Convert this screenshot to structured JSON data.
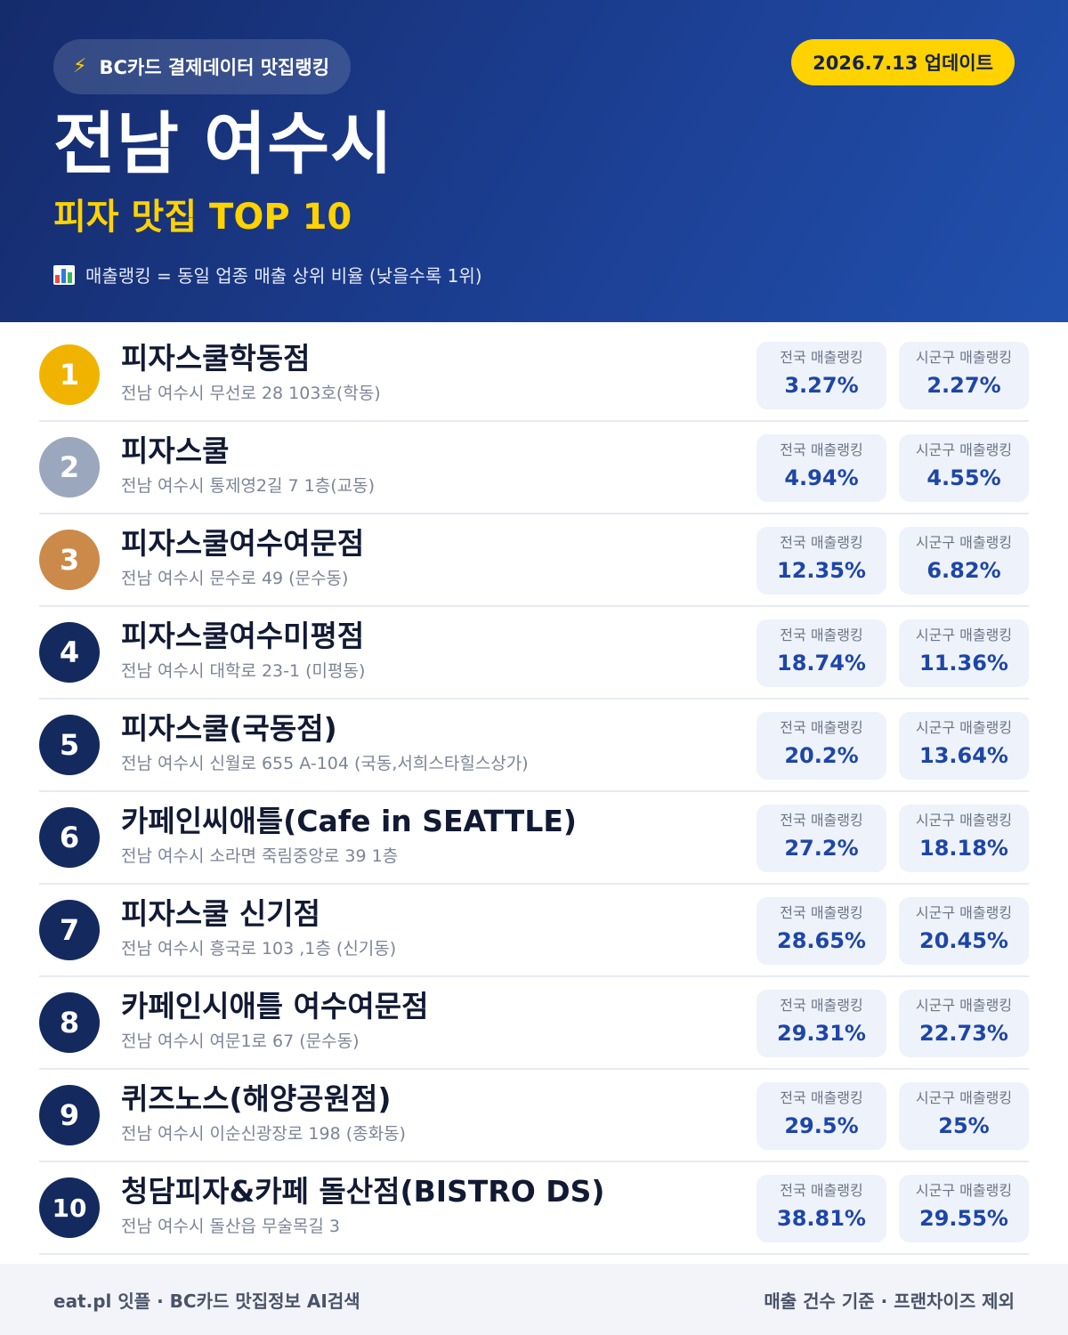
{
  "header": {
    "brand_label": "BC카드 결제데이터 맛집랭킹",
    "bolt_icon": "lightning-bolt-icon",
    "update_label": "2026.7.13 업데이트",
    "title": "전남 여수시",
    "subtitle": "피자 맛집 TOP 10",
    "chart_icon": "bar-chart-icon",
    "note": "매출랭킹 = 동일 업종 매출 상위 비율 (낮을수록 1위)"
  },
  "stat_labels": {
    "national": "전국 매출랭킹",
    "local": "시군구 매출랭킹"
  },
  "rank_colors": {
    "1": "#f0b400",
    "2": "#9ba7bd",
    "3": "#cc8a4a",
    "default": "#142a5e"
  },
  "restaurants": [
    {
      "rank": "1",
      "name": "피자스쿨학동점",
      "address": "전남 여수시 무선로 28 103호(학동)",
      "national": "3.27%",
      "local": "2.27%"
    },
    {
      "rank": "2",
      "name": "피자스쿨",
      "address": "전남 여수시 통제영2길 7 1층(교동)",
      "national": "4.94%",
      "local": "4.55%"
    },
    {
      "rank": "3",
      "name": "피자스쿨여수여문점",
      "address": "전남 여수시 문수로 49 (문수동)",
      "national": "12.35%",
      "local": "6.82%"
    },
    {
      "rank": "4",
      "name": "피자스쿨여수미평점",
      "address": "전남 여수시 대학로 23-1 (미평동)",
      "national": "18.74%",
      "local": "11.36%"
    },
    {
      "rank": "5",
      "name": "피자스쿨(국동점)",
      "address": "전남 여수시 신월로 655 A-104 (국동,서희스타힐스상가)",
      "national": "20.2%",
      "local": "13.64%"
    },
    {
      "rank": "6",
      "name": "카페인씨애틀(Cafe in SEATTLE)",
      "address": "전남 여수시 소라면 죽림중앙로 39 1층",
      "national": "27.2%",
      "local": "18.18%"
    },
    {
      "rank": "7",
      "name": "피자스쿨 신기점",
      "address": "전남 여수시 흥국로 103 ,1층 (신기동)",
      "national": "28.65%",
      "local": "20.45%"
    },
    {
      "rank": "8",
      "name": "카페인시애틀 여수여문점",
      "address": "전남 여수시 여문1로 67 (문수동)",
      "national": "29.31%",
      "local": "22.73%"
    },
    {
      "rank": "9",
      "name": "퀴즈노스(해양공원점)",
      "address": "전남 여수시 이순신광장로 198 (종화동)",
      "national": "29.5%",
      "local": "25%"
    },
    {
      "rank": "10",
      "name": "청담피자&카페 돌산점(BISTRO DS)",
      "address": "전남 여수시 돌산읍 무술목길 3",
      "national": "38.81%",
      "local": "29.55%"
    }
  ],
  "footer": {
    "left": "eat.pl 잇플 · BC카드 맛집정보 AI검색",
    "right": "매출 건수 기준 · 프랜차이즈 제외"
  }
}
